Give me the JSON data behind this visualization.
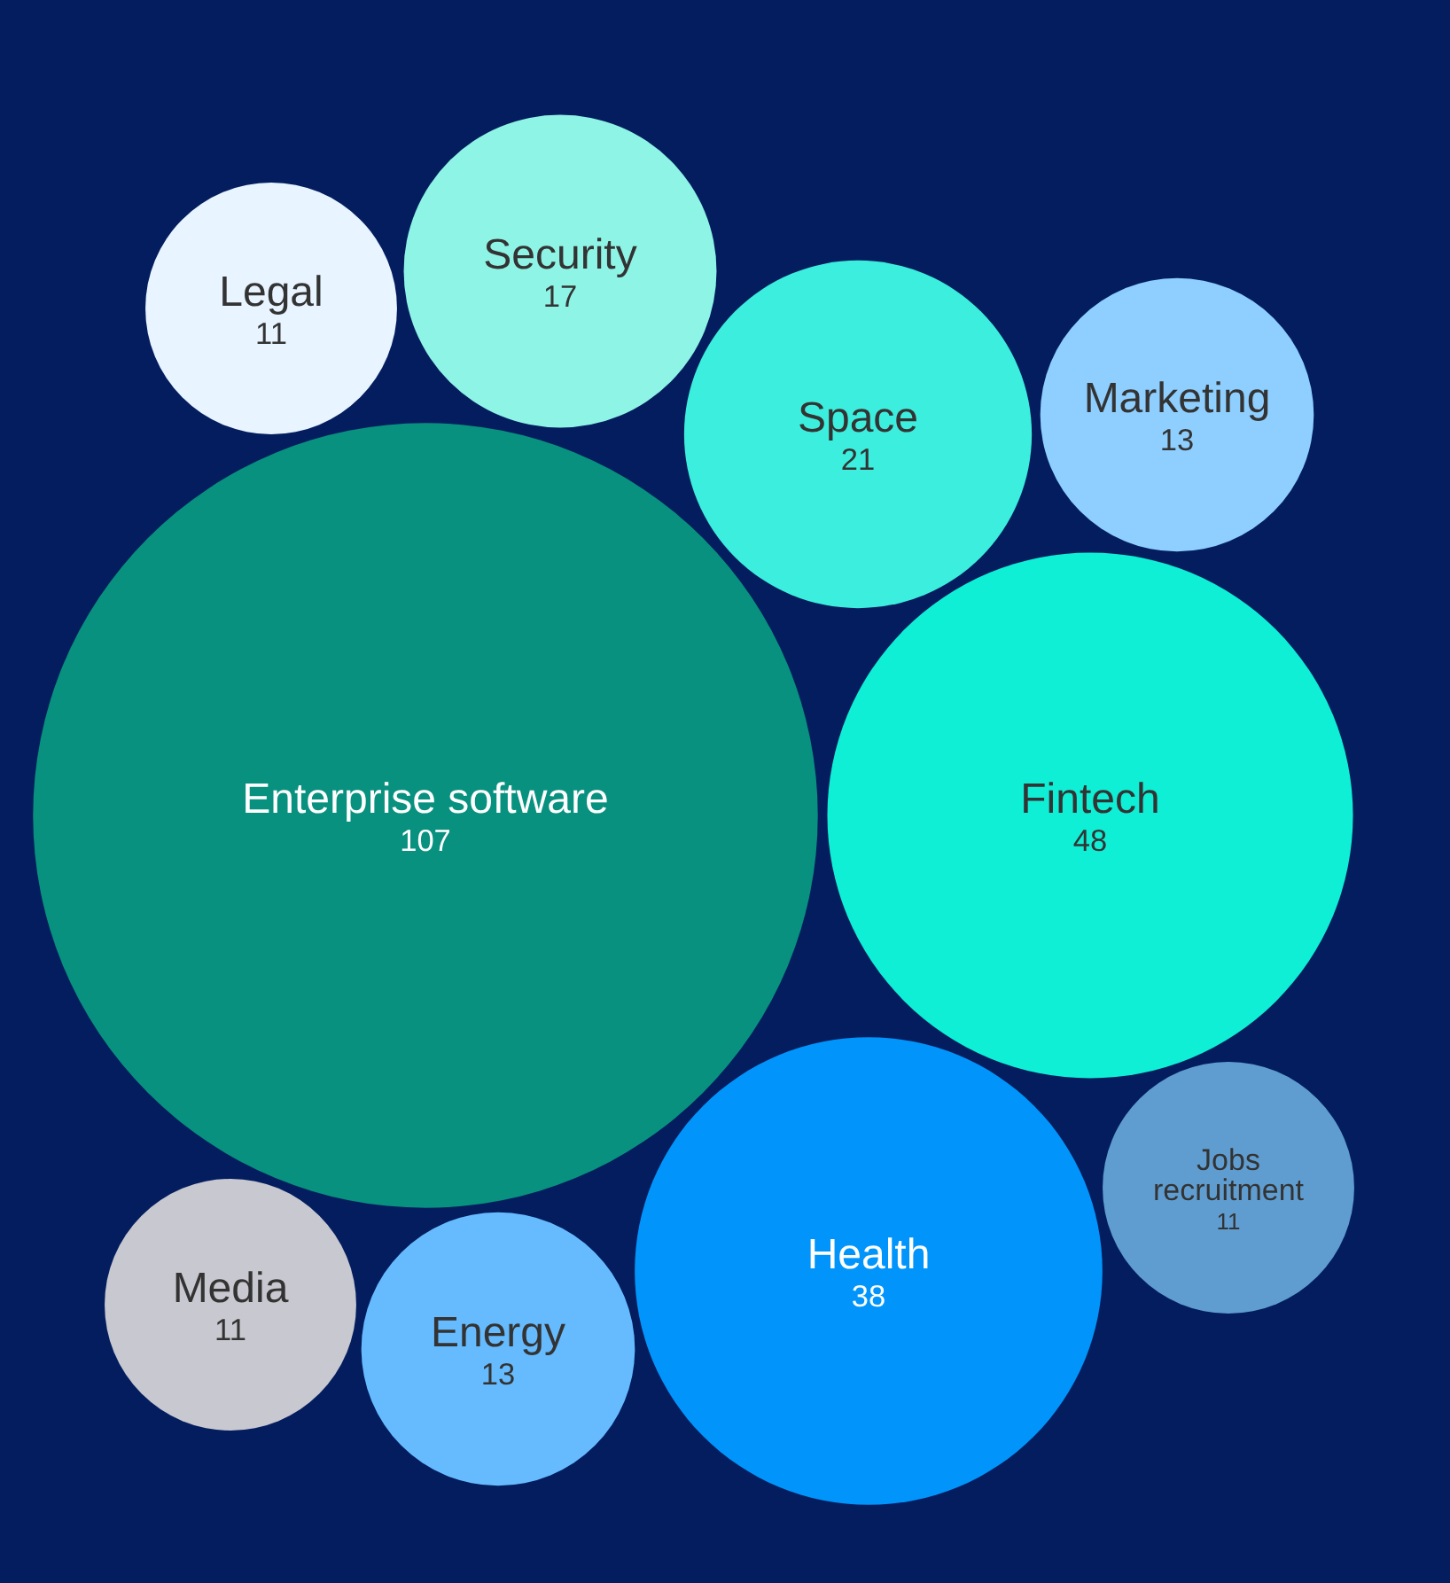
{
  "chart_data": {
    "type": "other",
    "categories": [
      "Legal",
      "Security",
      "Space",
      "Marketing",
      "Enterprise software",
      "Fintech",
      "Jobs recruitment",
      "Media",
      "Energy",
      "Health"
    ],
    "values": [
      11,
      17,
      21,
      13,
      107,
      48,
      11,
      11,
      13,
      38
    ],
    "colors": [
      "#e8f4ff",
      "#8ef4e6",
      "#3ceedd",
      "#8ecfff",
      "#08917f",
      "#0eefd6",
      "#5f9dd0",
      "#c8c8d0",
      "#66bbff",
      "#0195fb"
    ],
    "data_labels": true
  }
}
